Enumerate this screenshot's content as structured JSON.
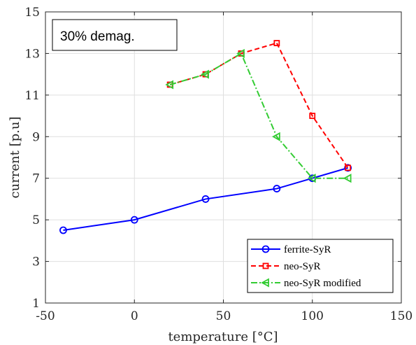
{
  "chart_data": {
    "type": "line",
    "xlabel": "temperature [°C]",
    "ylabel": "current [p.u]",
    "xlim": [
      -50,
      150
    ],
    "ylim": [
      1,
      15
    ],
    "xticks": [
      -50,
      0,
      50,
      100,
      150
    ],
    "yticks": [
      1,
      3,
      5,
      7,
      9,
      11,
      13,
      15
    ],
    "grid": true,
    "legend_position": "bottom-right",
    "annotation": "30% demag.",
    "series": [
      {
        "name": "ferrite-SyR",
        "color": "#0000ff",
        "line_style": "solid",
        "marker": "circle",
        "x": [
          -40,
          0,
          40,
          80,
          100,
          120
        ],
        "y": [
          4.5,
          5,
          6,
          6.5,
          7,
          7.5
        ]
      },
      {
        "name": "neo-SyR",
        "color": "#ff0000",
        "line_style": "dashed",
        "marker": "square",
        "x": [
          20,
          40,
          60,
          80,
          100,
          120
        ],
        "y": [
          11.5,
          12,
          13,
          13.5,
          10,
          7.5
        ]
      },
      {
        "name": "neo-SyR modified",
        "color": "#33cc33",
        "line_style": "dashdot",
        "marker": "triangle-left",
        "x": [
          20,
          40,
          60,
          80,
          100,
          120
        ],
        "y": [
          11.5,
          12,
          13,
          9,
          7,
          7
        ]
      }
    ]
  }
}
